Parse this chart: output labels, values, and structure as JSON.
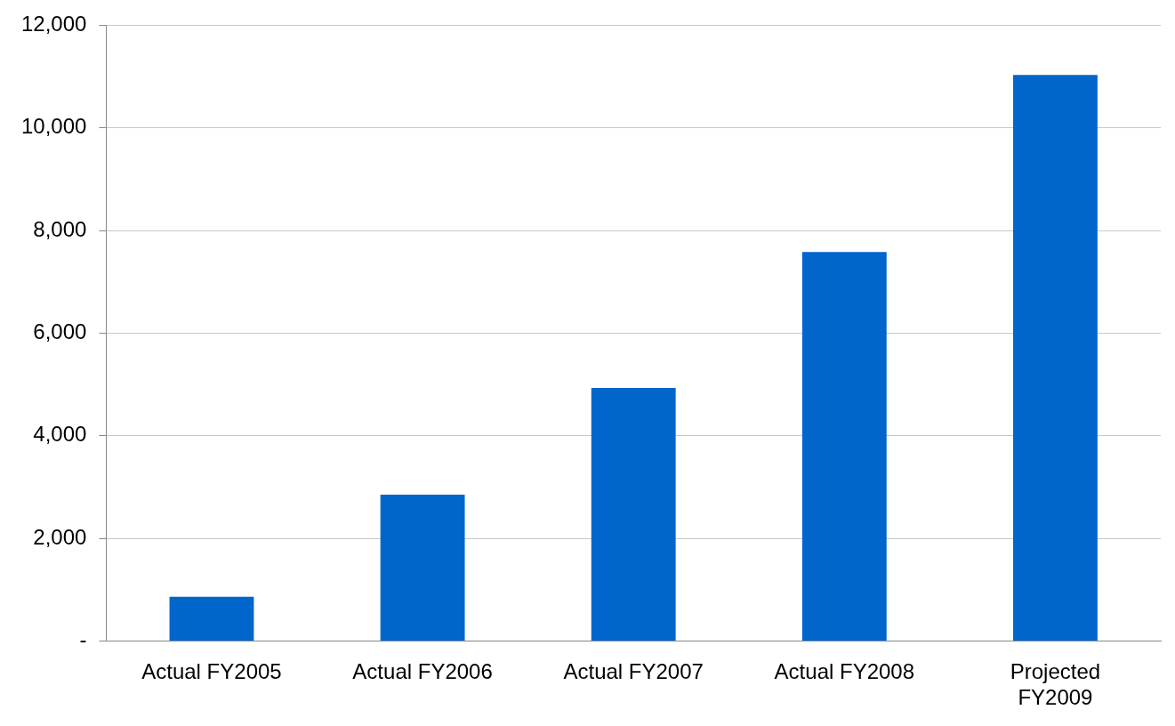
{
  "chart_data": {
    "type": "bar",
    "categories": [
      "Actual FY2005",
      "Actual FY2006",
      "Actual FY2007",
      "Actual FY2008",
      "Projected FY2009"
    ],
    "values": [
      860,
      2850,
      4930,
      7580,
      11030
    ],
    "color": "#0066cc",
    "ylim": [
      0,
      12000
    ],
    "yticks": [
      {
        "value": 0,
        "label": "-"
      },
      {
        "value": 2000,
        "label": "2,000"
      },
      {
        "value": 4000,
        "label": "4,000"
      },
      {
        "value": 6000,
        "label": "6,000"
      },
      {
        "value": 8000,
        "label": "8,000"
      },
      {
        "value": 10000,
        "label": "10,000"
      },
      {
        "value": 12000,
        "label": "12,000"
      }
    ],
    "grid": "y"
  }
}
